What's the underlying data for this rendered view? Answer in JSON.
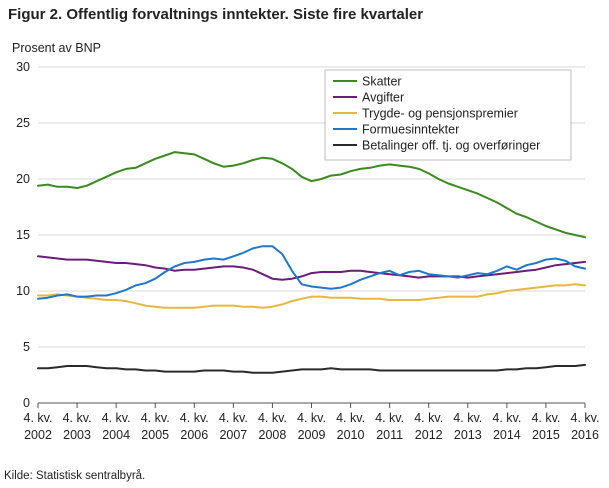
{
  "figure": {
    "title": "Figur 2. Offentlig forvaltnings inntekter. Siste fire kvartaler",
    "source": "Kilde: Statistisk sentralbyrå."
  },
  "chart_data": {
    "type": "line",
    "title": "Figur 2. Offentlig forvaltnings inntekter. Siste fire kvartaler",
    "ylabel": "Prosent av BNP",
    "xlabel": "",
    "ylim": [
      0,
      30
    ],
    "yticks": [
      0,
      5,
      10,
      15,
      20,
      25,
      30
    ],
    "grid": true,
    "legend_position": "top-right",
    "x_start_year": 2002,
    "x_start_quarter": 4,
    "x_ticks": [
      {
        "year": 2002,
        "quarter": 4,
        "label_top": "4. kv.",
        "label_bottom": "2002"
      },
      {
        "year": 2003,
        "quarter": 4,
        "label_top": "4. kv.",
        "label_bottom": "2003"
      },
      {
        "year": 2004,
        "quarter": 4,
        "label_top": "4. kv.",
        "label_bottom": "2004"
      },
      {
        "year": 2005,
        "quarter": 4,
        "label_top": "4. kv.",
        "label_bottom": "2005"
      },
      {
        "year": 2006,
        "quarter": 4,
        "label_top": "4. kv.",
        "label_bottom": "2006"
      },
      {
        "year": 2007,
        "quarter": 4,
        "label_top": "4. kv.",
        "label_bottom": "2007"
      },
      {
        "year": 2008,
        "quarter": 4,
        "label_top": "4. kv.",
        "label_bottom": "2008"
      },
      {
        "year": 2009,
        "quarter": 4,
        "label_top": "4. kv.",
        "label_bottom": "2009"
      },
      {
        "year": 2010,
        "quarter": 4,
        "label_top": "4. kv.",
        "label_bottom": "2010"
      },
      {
        "year": 2011,
        "quarter": 4,
        "label_top": "4. kv.",
        "label_bottom": "2011"
      },
      {
        "year": 2012,
        "quarter": 4,
        "label_top": "4. kv.",
        "label_bottom": "2012"
      },
      {
        "year": 2013,
        "quarter": 4,
        "label_top": "4. kv.",
        "label_bottom": "2013"
      },
      {
        "year": 2014,
        "quarter": 4,
        "label_top": "4. kv.",
        "label_bottom": "2014"
      },
      {
        "year": 2015,
        "quarter": 4,
        "label_top": "4. kv.",
        "label_bottom": "2015"
      },
      {
        "year": 2016,
        "quarter": 4,
        "label_top": "4. kv.",
        "label_bottom": "2016"
      }
    ],
    "series": [
      {
        "name": "Skatter",
        "color": "#3a8a1f",
        "values": [
          19.4,
          19.5,
          19.3,
          19.3,
          19.2,
          19.4,
          19.8,
          20.2,
          20.6,
          20.9,
          21.0,
          21.4,
          21.8,
          22.1,
          22.4,
          22.3,
          22.2,
          21.8,
          21.4,
          21.1,
          21.2,
          21.4,
          21.7,
          21.9,
          21.8,
          21.4,
          20.9,
          20.2,
          19.8,
          20.0,
          20.3,
          20.4,
          20.7,
          20.9,
          21.0,
          21.2,
          21.3,
          21.2,
          21.1,
          20.9,
          20.5,
          20.0,
          19.6,
          19.3,
          19.0,
          18.7,
          18.3,
          17.9,
          17.4,
          16.9,
          16.6,
          16.2,
          15.8,
          15.5,
          15.2,
          15.0,
          14.8
        ]
      },
      {
        "name": "Avgifter",
        "color": "#6a1d7a",
        "values": [
          13.1,
          13.0,
          12.9,
          12.8,
          12.8,
          12.8,
          12.7,
          12.6,
          12.5,
          12.5,
          12.4,
          12.3,
          12.1,
          12.0,
          11.8,
          11.9,
          11.9,
          12.0,
          12.1,
          12.2,
          12.2,
          12.1,
          11.9,
          11.5,
          11.1,
          11.0,
          11.1,
          11.3,
          11.6,
          11.7,
          11.7,
          11.7,
          11.8,
          11.8,
          11.7,
          11.6,
          11.5,
          11.4,
          11.3,
          11.2,
          11.3,
          11.3,
          11.3,
          11.3,
          11.2,
          11.3,
          11.4,
          11.5,
          11.6,
          11.7,
          11.8,
          11.9,
          12.1,
          12.3,
          12.4,
          12.5,
          12.6
        ]
      },
      {
        "name": "Trygde- og pensjonspremier",
        "color": "#e8b73e",
        "values": [
          9.6,
          9.6,
          9.7,
          9.6,
          9.5,
          9.4,
          9.3,
          9.2,
          9.2,
          9.1,
          8.9,
          8.7,
          8.6,
          8.5,
          8.5,
          8.5,
          8.5,
          8.6,
          8.7,
          8.7,
          8.7,
          8.6,
          8.6,
          8.5,
          8.6,
          8.8,
          9.1,
          9.3,
          9.5,
          9.5,
          9.4,
          9.4,
          9.4,
          9.3,
          9.3,
          9.3,
          9.2,
          9.2,
          9.2,
          9.2,
          9.3,
          9.4,
          9.5,
          9.5,
          9.5,
          9.5,
          9.7,
          9.8,
          10.0,
          10.1,
          10.2,
          10.3,
          10.4,
          10.5,
          10.5,
          10.6,
          10.5
        ]
      },
      {
        "name": "Formuesinntekter",
        "color": "#1f78c8",
        "values": [
          9.3,
          9.4,
          9.6,
          9.7,
          9.5,
          9.5,
          9.6,
          9.6,
          9.8,
          10.1,
          10.5,
          10.7,
          11.1,
          11.7,
          12.2,
          12.5,
          12.6,
          12.8,
          12.9,
          12.8,
          13.1,
          13.4,
          13.8,
          14.0,
          14.0,
          13.3,
          11.8,
          10.6,
          10.4,
          10.3,
          10.2,
          10.3,
          10.6,
          11.0,
          11.3,
          11.6,
          11.8,
          11.4,
          11.7,
          11.8,
          11.5,
          11.4,
          11.3,
          11.2,
          11.4,
          11.6,
          11.5,
          11.8,
          12.2,
          11.9,
          12.3,
          12.5,
          12.8,
          12.9,
          12.7,
          12.2,
          12.0
        ]
      },
      {
        "name": "Betalinger off. tj. og overføringer",
        "color": "#2b2b2b",
        "values": [
          3.1,
          3.1,
          3.2,
          3.3,
          3.3,
          3.3,
          3.2,
          3.1,
          3.1,
          3.0,
          3.0,
          2.9,
          2.9,
          2.8,
          2.8,
          2.8,
          2.8,
          2.9,
          2.9,
          2.9,
          2.8,
          2.8,
          2.7,
          2.7,
          2.7,
          2.8,
          2.9,
          3.0,
          3.0,
          3.0,
          3.1,
          3.0,
          3.0,
          3.0,
          3.0,
          2.9,
          2.9,
          2.9,
          2.9,
          2.9,
          2.9,
          2.9,
          2.9,
          2.9,
          2.9,
          2.9,
          2.9,
          2.9,
          3.0,
          3.0,
          3.1,
          3.1,
          3.2,
          3.3,
          3.3,
          3.3,
          3.4
        ]
      }
    ]
  }
}
